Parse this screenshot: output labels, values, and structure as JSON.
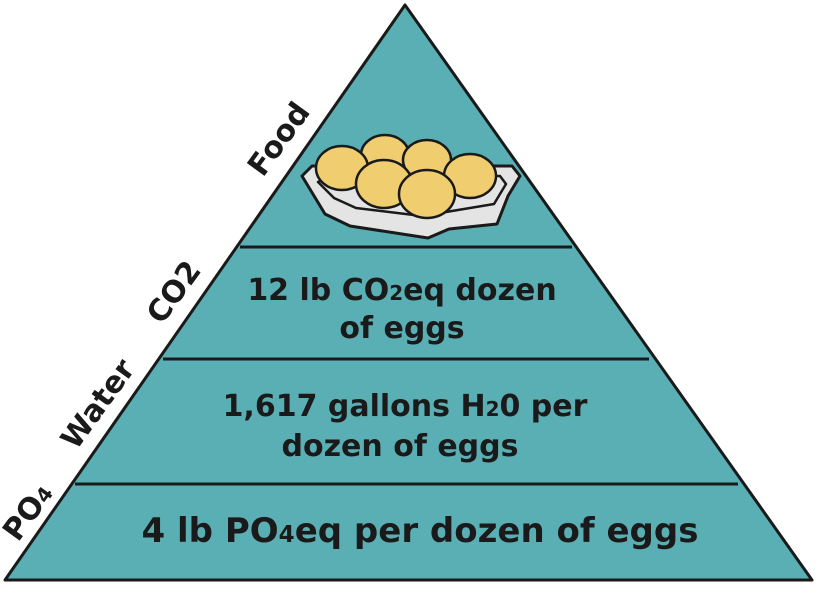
{
  "colors": {
    "fill": "#5aafb4",
    "stroke": "#1a1a1a",
    "tray": "#e4e4e4",
    "egg": "#f0cd6f"
  },
  "side_labels": {
    "food": "Food",
    "co2": "CO2",
    "water": "Water",
    "po4_main": "PO",
    "po4_sub": "4"
  },
  "tiers": {
    "top": {
      "image": "egg-carton-icon"
    },
    "co2": {
      "line1_pre": "12 lb CO",
      "line1_sub": "2",
      "line1_post": "eq dozen",
      "line2": "of eggs"
    },
    "water": {
      "line1_pre": "1,617 gallons H",
      "line1_sub": "2",
      "line1_post": "0 per",
      "line2": "dozen of eggs"
    },
    "po4": {
      "line1_pre": "4 lb PO",
      "line1_sub": "4",
      "line1_post": "eq per dozen of eggs"
    }
  }
}
